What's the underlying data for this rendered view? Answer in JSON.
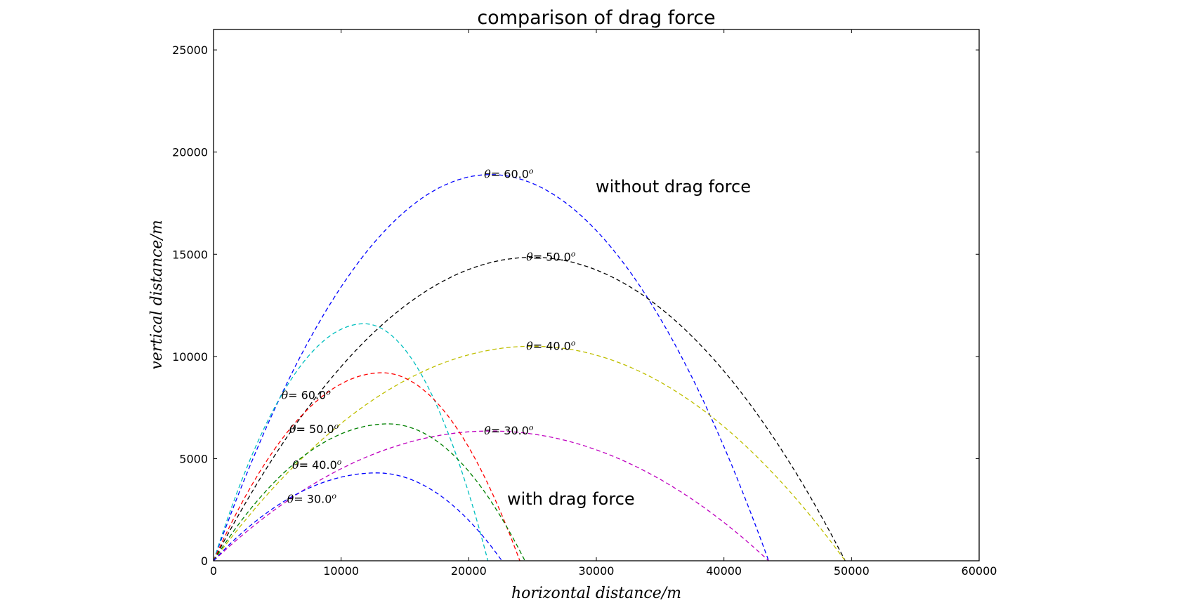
{
  "chart_data": {
    "type": "line",
    "title": "comparison of drag force",
    "xlabel": "horizontal distance/m",
    "ylabel": "vertical distance/m",
    "xlim": [
      0,
      60000
    ],
    "ylim": [
      0,
      26000
    ],
    "xticks": [
      0,
      10000,
      20000,
      30000,
      40000,
      50000,
      60000
    ],
    "yticks": [
      0,
      5000,
      10000,
      15000,
      20000,
      25000
    ],
    "xtick_labels": [
      "0",
      "10000",
      "20000",
      "30000",
      "40000",
      "50000",
      "60000"
    ],
    "ytick_labels": [
      "0",
      "5000",
      "10000",
      "15000",
      "20000",
      "25000"
    ],
    "grid": false,
    "line_style": "dashed",
    "groups": {
      "without": "without drag force",
      "with": "with drag force"
    },
    "series": [
      {
        "group": "without",
        "color": "#0000ff",
        "angle_label": "= 60.0",
        "peak_x": 21700,
        "peak_y": 18900,
        "range": 43500
      },
      {
        "group": "without",
        "color": "#000000",
        "angle_label": "= 50.0",
        "peak_x": 25000,
        "peak_y": 14850,
        "range": 49500
      },
      {
        "group": "without",
        "color": "#bfbf00",
        "angle_label": "= 40.0",
        "peak_x": 25000,
        "peak_y": 10500,
        "range": 49500
      },
      {
        "group": "without",
        "color": "#bf00bf",
        "angle_label": "= 30.0",
        "peak_x": 21700,
        "peak_y": 6350,
        "range": 43500
      },
      {
        "group": "with",
        "color": "#00bfbf",
        "angle_label": "= 60.0",
        "peak_x": 11800,
        "peak_y": 11600,
        "range": 21500
      },
      {
        "group": "with",
        "color": "#ff0000",
        "angle_label": "= 50.0",
        "peak_x": 13200,
        "peak_y": 9200,
        "range": 24000
      },
      {
        "group": "with",
        "color": "#008000",
        "angle_label": "= 40.0",
        "peak_x": 13700,
        "peak_y": 6700,
        "range": 24400
      },
      {
        "group": "with",
        "color": "#0000ff",
        "angle_label": "= 30.0",
        "peak_x": 12800,
        "peak_y": 4300,
        "range": 22600
      }
    ]
  }
}
